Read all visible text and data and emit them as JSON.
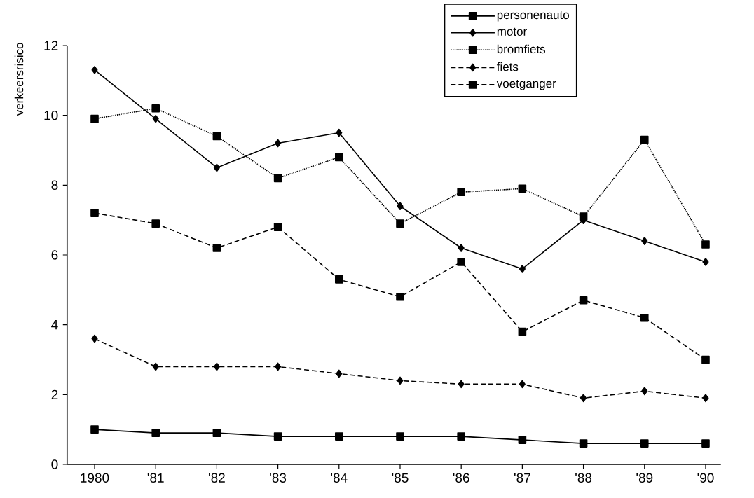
{
  "chart_data": {
    "type": "line",
    "ylabel": "verkeersrisico",
    "categories": [
      "1980",
      "'81",
      "'82",
      "'83",
      "'84",
      "'85",
      "'86",
      "'87",
      "'88",
      "'89",
      "'90"
    ],
    "ylim": [
      0,
      12
    ],
    "yticks": [
      0,
      2,
      4,
      6,
      8,
      10,
      12
    ],
    "grid": false,
    "legend": "top right",
    "series": [
      {
        "name": "personenauto",
        "color": "#000000",
        "marker": "square",
        "line_style": "solid",
        "values": [
          1.0,
          0.9,
          0.9,
          0.8,
          0.8,
          0.8,
          0.8,
          0.7,
          0.6,
          0.6,
          0.6
        ]
      },
      {
        "name": "motor",
        "color": "#000000",
        "marker": "diamond",
        "line_style": "solid",
        "values": [
          11.3,
          9.9,
          8.5,
          9.2,
          9.5,
          7.4,
          6.2,
          5.6,
          7.0,
          6.4,
          5.8
        ]
      },
      {
        "name": "bromfiets",
        "color": "#000000",
        "marker": "square",
        "line_style": "dotted",
        "values": [
          9.9,
          10.2,
          9.4,
          8.2,
          8.8,
          6.9,
          7.8,
          7.9,
          7.1,
          9.3,
          6.3
        ]
      },
      {
        "name": "fiets",
        "color": "#000000",
        "marker": "diamond",
        "line_style": "dashed",
        "values": [
          3.6,
          2.8,
          2.8,
          2.8,
          2.6,
          2.4,
          2.3,
          2.3,
          1.9,
          2.1,
          1.9
        ]
      },
      {
        "name": "voetganger",
        "color": "#000000",
        "marker": "square",
        "line_style": "dashed",
        "values": [
          7.2,
          6.9,
          6.2,
          6.8,
          5.3,
          4.8,
          5.8,
          3.8,
          4.7,
          4.2,
          3.0
        ]
      }
    ]
  }
}
